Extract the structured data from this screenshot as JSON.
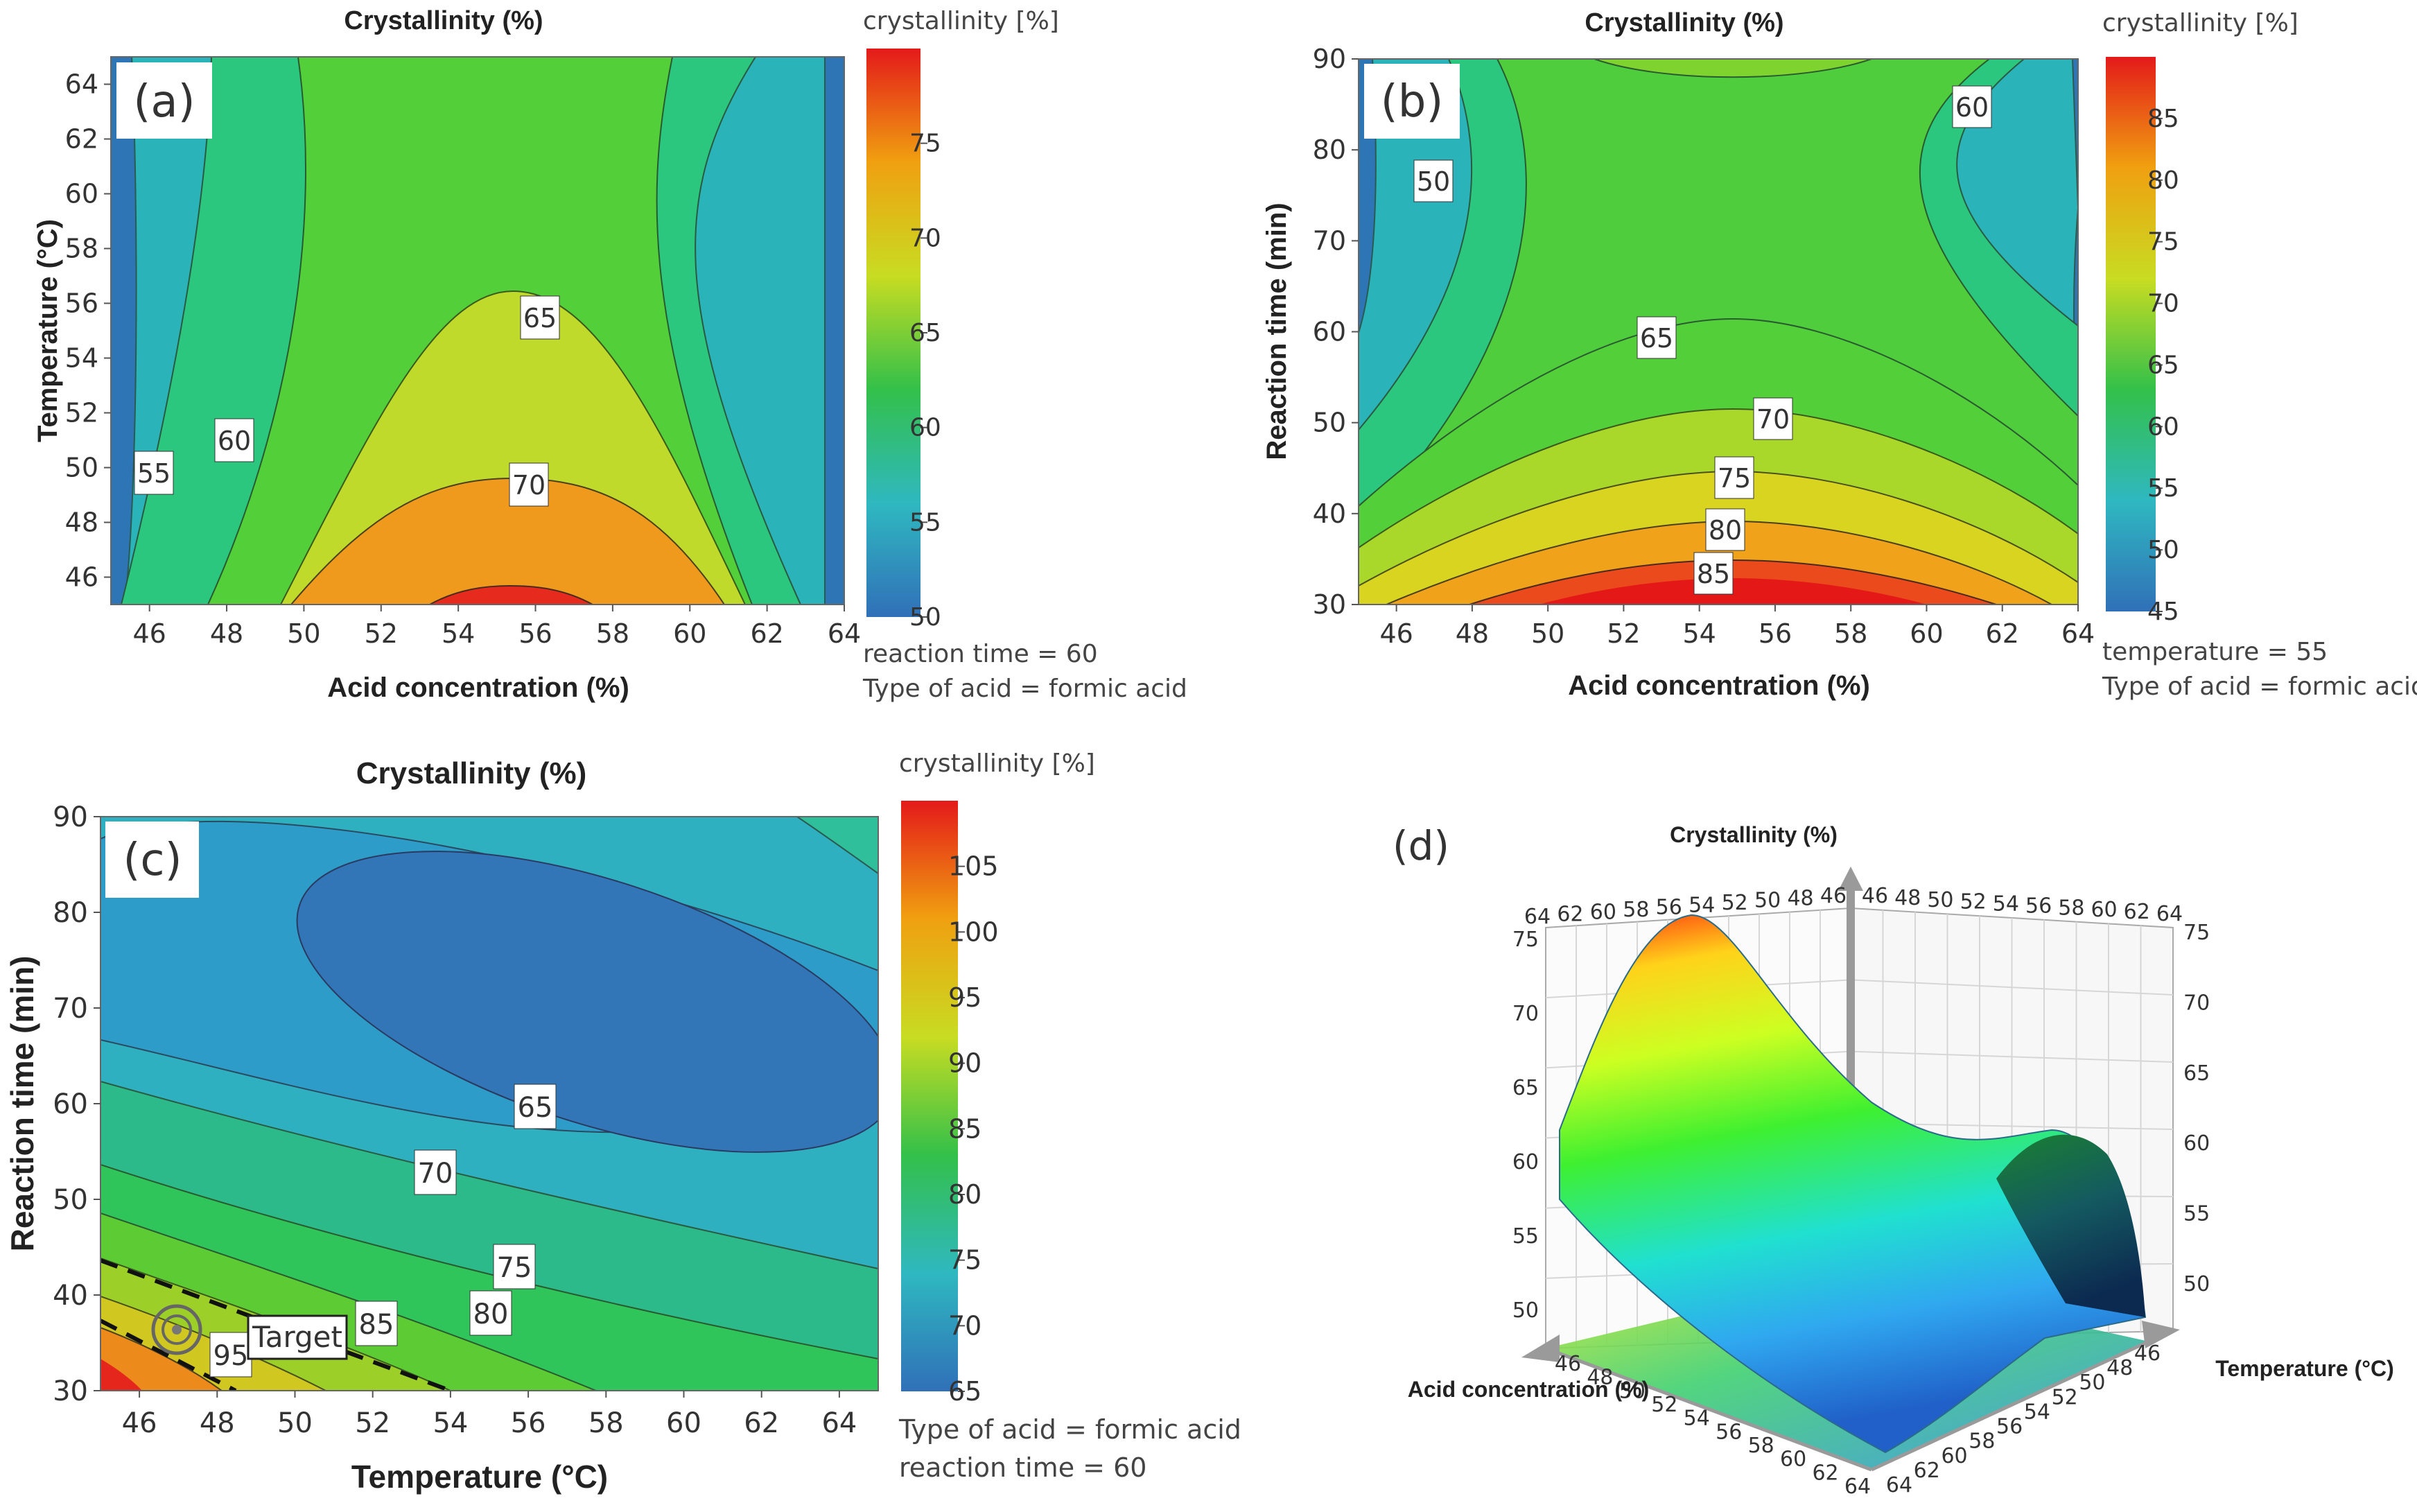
{
  "chart_data": [
    {
      "panel": "(a)",
      "type": "contour",
      "title": "Crystallinity (%)",
      "xlabel": "Acid concentration (%)",
      "ylabel": "Temperature (°C)",
      "xlim": [
        45,
        64
      ],
      "ylim": [
        45,
        65
      ],
      "xticks": [
        "46",
        "48",
        "50",
        "52",
        "54",
        "56",
        "58",
        "60",
        "62",
        "64"
      ],
      "yticks": [
        "46",
        "48",
        "50",
        "52",
        "54",
        "56",
        "58",
        "60",
        "62",
        "64"
      ],
      "contour_levels": [
        50,
        55,
        60,
        65,
        70,
        75
      ],
      "contour_labels": [
        "55",
        "60",
        "65",
        "70"
      ],
      "colorbar": {
        "label": "crystallinity [%]",
        "min": 50,
        "max": 80,
        "ticks": [
          "50",
          "55",
          "60",
          "65",
          "70",
          "75"
        ]
      },
      "notes": [
        "reaction time = 60",
        "Type of acid = formic acid"
      ]
    },
    {
      "panel": "(b)",
      "type": "contour",
      "title": "Crystallinity (%)",
      "xlabel": "Acid concentration (%)",
      "ylabel": "Reaction time (min)",
      "xlim": [
        45,
        64
      ],
      "ylim": [
        30,
        90
      ],
      "xticks": [
        "46",
        "48",
        "50",
        "52",
        "54",
        "56",
        "58",
        "60",
        "62",
        "64"
      ],
      "yticks": [
        "30",
        "40",
        "50",
        "60",
        "70",
        "80",
        "90"
      ],
      "contour_levels": [
        50,
        55,
        60,
        65,
        70,
        75,
        80,
        85
      ],
      "contour_labels": [
        "50",
        "60",
        "65",
        "70",
        "75",
        "80",
        "85"
      ],
      "colorbar": {
        "label": "crystallinity [%]",
        "min": 45,
        "max": 90,
        "ticks": [
          "45",
          "50",
          "55",
          "60",
          "65",
          "70",
          "75",
          "80",
          "85"
        ]
      },
      "notes": [
        "temperature = 55",
        "Type of acid = formic acid"
      ]
    },
    {
      "panel": "(c)",
      "type": "contour",
      "title": "Crystallinity (%)",
      "xlabel": "Temperature (°C)",
      "ylabel": "Reaction time (min)",
      "xlim": [
        45,
        65
      ],
      "ylim": [
        30,
        90
      ],
      "xticks": [
        "46",
        "48",
        "50",
        "52",
        "54",
        "56",
        "58",
        "60",
        "62",
        "64"
      ],
      "yticks": [
        "30",
        "40",
        "50",
        "60",
        "70",
        "80",
        "90"
      ],
      "contour_levels": [
        65,
        70,
        75,
        80,
        85,
        90,
        95,
        100,
        105
      ],
      "contour_labels": [
        "65",
        "70",
        "75",
        "80",
        "85",
        "95"
      ],
      "target_label": "Target",
      "target_point": {
        "x": 47,
        "y": 36
      },
      "colorbar": {
        "label": "crystallinity [%]",
        "min": 65,
        "max": 110,
        "ticks": [
          "65",
          "70",
          "75",
          "80",
          "85",
          "90",
          "95",
          "100",
          "105"
        ]
      },
      "notes": [
        "Type of acid = formic acid",
        "reaction time = 60"
      ]
    },
    {
      "panel": "(d)",
      "type": "surface3d",
      "zlabel": "Crystallinity (%)",
      "xlabel": "Acid concentration (%)",
      "ylabel": "Temperature (°C)",
      "back_left_ticks": [
        "64",
        "62",
        "60",
        "58",
        "56",
        "54",
        "52",
        "50",
        "48",
        "46"
      ],
      "back_right_ticks": [
        "46",
        "48",
        "50",
        "52",
        "54",
        "56",
        "58",
        "60",
        "62",
        "64"
      ],
      "z_ticks": [
        "50",
        "55",
        "60",
        "65",
        "70",
        "75"
      ],
      "front_left_ticks": [
        "46",
        "48",
        "50",
        "52",
        "54",
        "56",
        "58",
        "60",
        "62",
        "64"
      ],
      "front_right_ticks": [
        "64",
        "62",
        "60",
        "58",
        "56",
        "54",
        "52",
        "50",
        "48",
        "46"
      ]
    }
  ]
}
